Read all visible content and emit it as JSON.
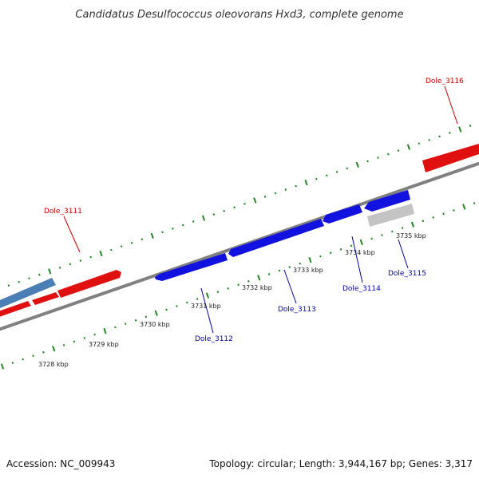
{
  "title": "Candidatus Desulfococcus oleovorans Hxd3, complete genome",
  "footer": {
    "accession": "Accession: NC_009943",
    "summary": "Topology: circular; Length: 3,944,167 bp; Genes: 3,317"
  },
  "colors": {
    "forward_gene": "#ee1111",
    "reverse_gene": "#1111ee",
    "rna_gene": "#4a7fb5",
    "other_gene": "#c8c8c8",
    "backbone": "#808080",
    "tick": "#228822",
    "label_forward": "#cc0000",
    "label_reverse": "#0000aa"
  },
  "ticks": [
    "3728 kbp",
    "3729 kbp",
    "3730 kbp",
    "3731 kbp",
    "3732 kbp",
    "3733 kbp",
    "3734 kbp",
    "3735 kbp"
  ],
  "gene_labels": [
    {
      "text": "Dole_3111",
      "strand": "forward"
    },
    {
      "text": "Dole_3112",
      "strand": "reverse"
    },
    {
      "text": "Dole_3113",
      "strand": "reverse"
    },
    {
      "text": "Dole_3114",
      "strand": "reverse"
    },
    {
      "text": "Dole_3115",
      "strand": "reverse"
    },
    {
      "text": "Dole_3116",
      "strand": "forward"
    }
  ]
}
